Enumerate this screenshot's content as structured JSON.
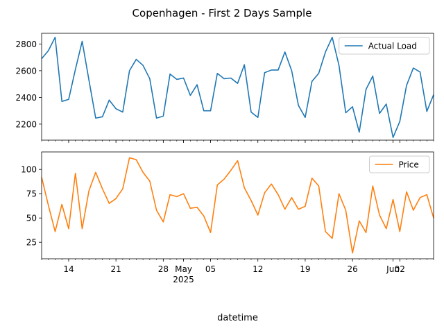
{
  "figure_title": "Copenhagen - First 2 Days Sample",
  "chart_data": [
    {
      "type": "line",
      "title": "",
      "xlabel": "",
      "ylabel": "",
      "ylim": [
        2080,
        2880
      ],
      "yticks": [
        2200,
        2400,
        2600,
        2800
      ],
      "grid": false,
      "legend_position": "upper right",
      "series": [
        {
          "name": "Actual Load",
          "color": "#1f77b4",
          "values": [
            2690,
            2750,
            2850,
            2370,
            2385,
            2610,
            2820,
            2530,
            2245,
            2255,
            2380,
            2315,
            2290,
            2600,
            2685,
            2640,
            2540,
            2245,
            2260,
            2575,
            2535,
            2545,
            2415,
            2495,
            2300,
            2300,
            2580,
            2540,
            2545,
            2505,
            2645,
            2290,
            2250,
            2585,
            2605,
            2605,
            2740,
            2600,
            2340,
            2250,
            2520,
            2580,
            2740,
            2850,
            2640,
            2285,
            2330,
            2140,
            2460,
            2560,
            2280,
            2350,
            2100,
            2220,
            2490,
            2620,
            2590,
            2295,
            2420
          ]
        }
      ]
    },
    {
      "type": "line",
      "title": "",
      "xlabel": "datetime",
      "ylabel": "",
      "ylim": [
        8,
        118
      ],
      "yticks": [
        25,
        50,
        75,
        100
      ],
      "grid": false,
      "legend_position": "upper right",
      "x_start": "2025-04-10",
      "x_end": "2025-06-07",
      "x_ticks": [
        {
          "date": "2025-04-14",
          "label": "14"
        },
        {
          "date": "2025-04-21",
          "label": "21"
        },
        {
          "date": "2025-04-28",
          "label": "28"
        },
        {
          "date": "2025-05-01",
          "label": "May\n2025"
        },
        {
          "date": "2025-05-05",
          "label": "05"
        },
        {
          "date": "2025-05-12",
          "label": "12"
        },
        {
          "date": "2025-05-19",
          "label": "19"
        },
        {
          "date": "2025-05-26",
          "label": "26"
        },
        {
          "date": "2025-06-01",
          "label": "Jun"
        },
        {
          "date": "2025-06-02",
          "label": "02"
        }
      ],
      "series": [
        {
          "name": "Price",
          "color": "#ff7f0e",
          "values": [
            92,
            63,
            36,
            64,
            39,
            96,
            39,
            78,
            97,
            80,
            65,
            70,
            80,
            112,
            110,
            97,
            88,
            58,
            46,
            74,
            72,
            75,
            60,
            61,
            52,
            35,
            84,
            90,
            99,
            109,
            81,
            68,
            53,
            76,
            85,
            74,
            59,
            71,
            59,
            62,
            91,
            83,
            36,
            29,
            75,
            58,
            14,
            47,
            35,
            83,
            53,
            39,
            69,
            36,
            77,
            58,
            71,
            74,
            50
          ]
        }
      ]
    }
  ]
}
